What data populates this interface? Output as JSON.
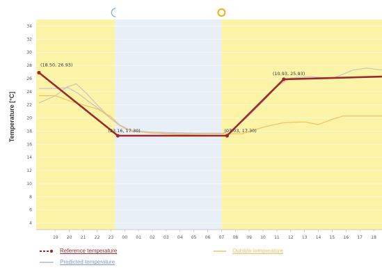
{
  "chart_data": {
    "type": "line",
    "ylabel": "Temperature [°C]",
    "ylim": [
      3,
      35
    ],
    "y_ticks": [
      4,
      6,
      8,
      10,
      12,
      14,
      16,
      18,
      20,
      22,
      24,
      26,
      28,
      30,
      32,
      34
    ],
    "x_ticks": [
      "19",
      "20",
      "21",
      "22",
      "23",
      "00",
      "01",
      "02",
      "03",
      "04",
      "05",
      "06",
      "07",
      "08",
      "09",
      "10",
      "11",
      "12",
      "13",
      "14",
      "15",
      "16",
      "17",
      "18"
    ],
    "xlim": [
      -1.4,
      23.6
    ],
    "bands": [
      {
        "name": "day",
        "from": -1.4,
        "to": 4.3,
        "color": "#fbf3a6"
      },
      {
        "name": "night",
        "from": 4.3,
        "to": 12.0,
        "color": "#e8eff6"
      },
      {
        "name": "day",
        "from": 12.0,
        "to": 23.6,
        "color": "#fbf3a6"
      }
    ],
    "markers": [
      {
        "name": "moon-icon",
        "at": 4.3,
        "color": "#8fb0d6"
      },
      {
        "name": "sun-icon",
        "at": 12.0,
        "color": "#f0b429"
      }
    ],
    "series": [
      {
        "name": "Reference temperature",
        "color": "#9b2b2b",
        "x": [
          -1.2,
          4.5,
          12.4,
          16.5,
          23.6
        ],
        "y": [
          26.9,
          17.3,
          17.3,
          25.9,
          26.3
        ],
        "labels": [
          "(18.50, 26.93)",
          "(23.16, 17.30)",
          "(07.03, 17.30)",
          "(10.93, 25.93)",
          ""
        ]
      },
      {
        "name": "Predicted temperature",
        "color": "#c7c3c8",
        "x": [
          -1.2,
          0.0,
          0.9,
          1.6,
          2.4,
          3.2,
          4.0,
          4.6,
          5.2,
          6.0,
          8.0,
          10.0,
          12.0,
          12.8,
          13.8,
          15.0,
          16.0,
          17.0,
          18.5,
          20.0,
          21.5,
          22.5,
          23.6
        ],
        "y": [
          24.5,
          24.5,
          24.6,
          23.8,
          22.5,
          21.3,
          19.9,
          18.9,
          18.2,
          18.0,
          17.7,
          17.6,
          17.6,
          18.3,
          20.0,
          22.5,
          24.8,
          26.1,
          26.3,
          26.0,
          27.3,
          27.6,
          27.3
        ]
      },
      {
        "name": "Predicted temperature",
        "color": "#c7c3c8",
        "x": [
          -1.2,
          0.0,
          0.8,
          1.5,
          2.3,
          3.1,
          3.9,
          4.6,
          5.3,
          6.0,
          8.0,
          10.0,
          12.0
        ],
        "y": [
          22.3,
          23.4,
          24.7,
          25.2,
          23.6,
          21.8,
          20.1,
          18.9,
          18.2,
          17.9,
          17.8,
          17.7,
          17.7
        ]
      },
      {
        "name": "Outside temperature",
        "color": "#f2c060",
        "x": [
          -1.2,
          0.0,
          1.0,
          2.0,
          3.0,
          4.0,
          4.6,
          5.5,
          7.0,
          9.0,
          11.0,
          12.4,
          13.5,
          15.0,
          16.5,
          18.0,
          19.0,
          20.0,
          20.8,
          22.0,
          23.6
        ],
        "y": [
          23.4,
          23.4,
          22.6,
          22.0,
          21.4,
          20.2,
          19.0,
          18.0,
          17.7,
          17.5,
          17.6,
          17.6,
          17.6,
          18.6,
          19.3,
          19.4,
          19.0,
          19.8,
          20.3,
          20.3,
          20.3
        ]
      }
    ]
  },
  "legend": {
    "reference": {
      "label": "Reference temperature",
      "color": "#9b2b2b"
    },
    "outside": {
      "label": "Outside temperature",
      "color": "#f2c060"
    },
    "predicted": {
      "label": "Predicted temperature",
      "color": "#a9b8e2"
    }
  }
}
